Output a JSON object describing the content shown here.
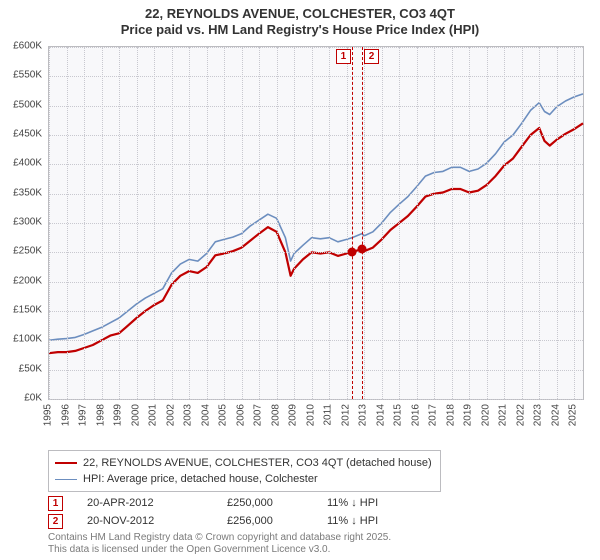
{
  "title_line1": "22, REYNOLDS AVENUE, COLCHESTER, CO3 4QT",
  "title_line2": "Price paid vs. HM Land Registry's House Price Index (HPI)",
  "title_fontsize": 13,
  "chart": {
    "type": "line",
    "background_color": "#f8f8fa",
    "grid_color": "#c8c8cf",
    "border_color": "#bcbcc0",
    "x_min": 1995,
    "x_max": 2025.5,
    "x_ticks": [
      1995,
      1996,
      1997,
      1998,
      1999,
      2000,
      2001,
      2002,
      2003,
      2004,
      2005,
      2006,
      2007,
      2008,
      2009,
      2010,
      2011,
      2012,
      2013,
      2014,
      2015,
      2016,
      2017,
      2018,
      2019,
      2020,
      2021,
      2022,
      2023,
      2024,
      2025
    ],
    "y_min": 0,
    "y_max": 600,
    "y_ticks": [
      0,
      50,
      100,
      150,
      200,
      250,
      300,
      350,
      400,
      450,
      500,
      550,
      600
    ],
    "y_tick_prefix": "£",
    "y_tick_suffix": "K",
    "series_price": {
      "label": "22, REYNOLDS AVENUE, COLCHESTER, CO3 4QT (detached house)",
      "color": "#c00000",
      "width": 2.2,
      "points": [
        [
          1995.0,
          78
        ],
        [
          1995.5,
          80
        ],
        [
          1996.0,
          80
        ],
        [
          1996.5,
          82
        ],
        [
          1997.0,
          87
        ],
        [
          1997.5,
          92
        ],
        [
          1998.0,
          100
        ],
        [
          1998.5,
          108
        ],
        [
          1999.0,
          112
        ],
        [
          1999.5,
          125
        ],
        [
          2000.0,
          138
        ],
        [
          2000.5,
          150
        ],
        [
          2001.0,
          160
        ],
        [
          2001.5,
          168
        ],
        [
          2002.0,
          195
        ],
        [
          2002.5,
          210
        ],
        [
          2003.0,
          218
        ],
        [
          2003.5,
          215
        ],
        [
          2004.0,
          225
        ],
        [
          2004.5,
          245
        ],
        [
          2005.0,
          248
        ],
        [
          2005.5,
          252
        ],
        [
          2006.0,
          258
        ],
        [
          2006.5,
          270
        ],
        [
          2007.0,
          282
        ],
        [
          2007.5,
          293
        ],
        [
          2008.0,
          285
        ],
        [
          2008.5,
          250
        ],
        [
          2008.8,
          210
        ],
        [
          2009.0,
          222
        ],
        [
          2009.5,
          238
        ],
        [
          2010.0,
          250
        ],
        [
          2010.5,
          248
        ],
        [
          2011.0,
          250
        ],
        [
          2011.5,
          244
        ],
        [
          2012.0,
          248
        ],
        [
          2012.3,
          250
        ],
        [
          2012.88,
          256
        ],
        [
          2013.0,
          252
        ],
        [
          2013.5,
          258
        ],
        [
          2014.0,
          272
        ],
        [
          2014.5,
          288
        ],
        [
          2015.0,
          300
        ],
        [
          2015.5,
          312
        ],
        [
          2016.0,
          328
        ],
        [
          2016.5,
          345
        ],
        [
          2017.0,
          350
        ],
        [
          2017.5,
          352
        ],
        [
          2018.0,
          358
        ],
        [
          2018.5,
          358
        ],
        [
          2019.0,
          352
        ],
        [
          2019.5,
          355
        ],
        [
          2020.0,
          365
        ],
        [
          2020.5,
          380
        ],
        [
          2021.0,
          398
        ],
        [
          2021.5,
          410
        ],
        [
          2022.0,
          430
        ],
        [
          2022.5,
          450
        ],
        [
          2023.0,
          462
        ],
        [
          2023.3,
          440
        ],
        [
          2023.6,
          432
        ],
        [
          2024.0,
          442
        ],
        [
          2024.5,
          452
        ],
        [
          2025.0,
          460
        ],
        [
          2025.5,
          470
        ]
      ]
    },
    "series_hpi": {
      "label": "HPI: Average price, detached house, Colchester",
      "color": "#6c8ebf",
      "width": 1.6,
      "points": [
        [
          1995.0,
          100
        ],
        [
          1995.5,
          102
        ],
        [
          1996.0,
          103
        ],
        [
          1996.5,
          105
        ],
        [
          1997.0,
          110
        ],
        [
          1997.5,
          116
        ],
        [
          1998.0,
          122
        ],
        [
          1998.5,
          130
        ],
        [
          1999.0,
          138
        ],
        [
          1999.5,
          150
        ],
        [
          2000.0,
          162
        ],
        [
          2000.5,
          172
        ],
        [
          2001.0,
          180
        ],
        [
          2001.5,
          188
        ],
        [
          2002.0,
          215
        ],
        [
          2002.5,
          230
        ],
        [
          2003.0,
          238
        ],
        [
          2003.5,
          235
        ],
        [
          2004.0,
          248
        ],
        [
          2004.5,
          268
        ],
        [
          2005.0,
          272
        ],
        [
          2005.5,
          276
        ],
        [
          2006.0,
          282
        ],
        [
          2006.5,
          295
        ],
        [
          2007.0,
          305
        ],
        [
          2007.5,
          315
        ],
        [
          2008.0,
          308
        ],
        [
          2008.5,
          275
        ],
        [
          2008.8,
          235
        ],
        [
          2009.0,
          248
        ],
        [
          2009.5,
          262
        ],
        [
          2010.0,
          275
        ],
        [
          2010.5,
          273
        ],
        [
          2011.0,
          275
        ],
        [
          2011.5,
          268
        ],
        [
          2012.0,
          272
        ],
        [
          2012.3,
          275
        ],
        [
          2012.88,
          282
        ],
        [
          2013.0,
          278
        ],
        [
          2013.5,
          285
        ],
        [
          2014.0,
          300
        ],
        [
          2014.5,
          318
        ],
        [
          2015.0,
          332
        ],
        [
          2015.5,
          345
        ],
        [
          2016.0,
          362
        ],
        [
          2016.5,
          380
        ],
        [
          2017.0,
          386
        ],
        [
          2017.5,
          388
        ],
        [
          2018.0,
          395
        ],
        [
          2018.5,
          395
        ],
        [
          2019.0,
          388
        ],
        [
          2019.5,
          392
        ],
        [
          2020.0,
          402
        ],
        [
          2020.5,
          418
        ],
        [
          2021.0,
          438
        ],
        [
          2021.5,
          450
        ],
        [
          2022.0,
          470
        ],
        [
          2022.5,
          492
        ],
        [
          2023.0,
          505
        ],
        [
          2023.3,
          490
        ],
        [
          2023.6,
          485
        ],
        [
          2024.0,
          498
        ],
        [
          2024.5,
          508
        ],
        [
          2025.0,
          515
        ],
        [
          2025.5,
          520
        ]
      ]
    },
    "sale_markers": [
      {
        "id": "1",
        "x_year": 2012.3,
        "price": 250,
        "color": "#c00000"
      },
      {
        "id": "2",
        "x_year": 2012.88,
        "price": 256,
        "color": "#c00000"
      }
    ]
  },
  "legend": {
    "items": [
      {
        "color": "#c00000",
        "width": 2.2,
        "label": "22, REYNOLDS AVENUE, COLCHESTER, CO3 4QT (detached house)"
      },
      {
        "color": "#6c8ebf",
        "width": 1.6,
        "label": "HPI: Average price, detached house, Colchester"
      }
    ]
  },
  "transactions": [
    {
      "id": "1",
      "date": "20-APR-2012",
      "price": "£250,000",
      "delta": "11% ↓ HPI"
    },
    {
      "id": "2",
      "date": "20-NOV-2012",
      "price": "£256,000",
      "delta": "11% ↓ HPI"
    }
  ],
  "footer_line1": "Contains HM Land Registry data © Crown copyright and database right 2025.",
  "footer_line2": "This data is licensed under the Open Government Licence v3.0."
}
